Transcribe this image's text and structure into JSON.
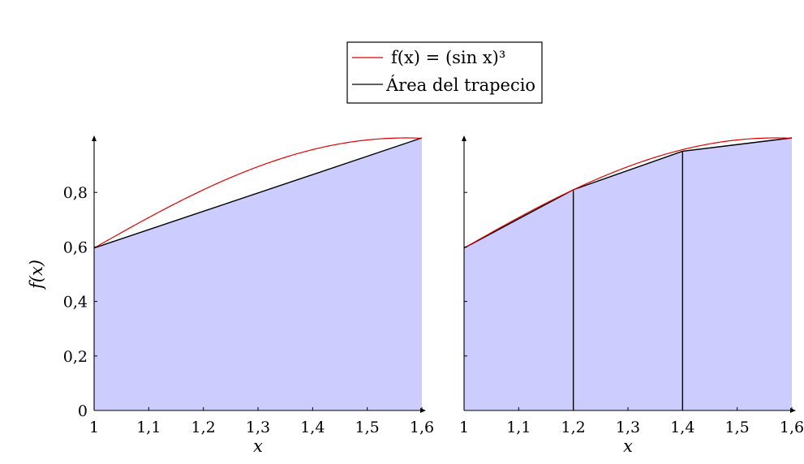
{
  "legend": {
    "entries": [
      {
        "label": "f(x) = (sin x)³",
        "color": "#e00000"
      },
      {
        "label": "Área del trapecio",
        "color": "#000000"
      }
    ]
  },
  "chart_data": [
    {
      "type": "area",
      "title": "",
      "xlabel": "x",
      "ylabel": "f(x)",
      "xlim": [
        1,
        1.6
      ],
      "ylim": [
        0,
        1
      ],
      "x_ticks": [
        1,
        1.1,
        1.2,
        1.3,
        1.4,
        1.5,
        1.6
      ],
      "x_tick_labels": [
        "1",
        "1,1",
        "1,2",
        "1,3",
        "1,4",
        "1,5",
        "1,6"
      ],
      "y_ticks": [
        0,
        0.2,
        0.4,
        0.6,
        0.8
      ],
      "y_tick_labels": [
        "0",
        "0,2",
        "0,4",
        "0,6",
        "0,8"
      ],
      "function": {
        "name": "f(x) = (sin x)³",
        "x": [
          1.0,
          1.05,
          1.1,
          1.15,
          1.2,
          1.25,
          1.3,
          1.35,
          1.4,
          1.45,
          1.5,
          1.55,
          1.6
        ],
        "y": [
          0.596,
          0.656,
          0.71,
          0.759,
          0.81,
          0.852,
          0.889,
          0.922,
          0.951,
          0.972,
          0.988,
          0.998,
          1.0
        ]
      },
      "trapezoid": {
        "name": "Área del trapecio",
        "x": [
          1.0,
          1.6
        ],
        "y": [
          0.596,
          1.0
        ]
      },
      "grid": false,
      "legend_position": "top-center"
    },
    {
      "type": "area",
      "title": "",
      "xlabel": "x",
      "ylabel": "",
      "xlim": [
        1,
        1.6
      ],
      "ylim": [
        0,
        1
      ],
      "x_ticks": [
        1,
        1.1,
        1.2,
        1.3,
        1.4,
        1.5,
        1.6
      ],
      "x_tick_labels": [
        "1",
        "1,1",
        "1,2",
        "1,3",
        "1,4",
        "1,5",
        "1,6"
      ],
      "y_ticks": [
        0,
        0.2,
        0.4,
        0.6,
        0.8
      ],
      "y_tick_labels": [],
      "function": {
        "name": "f(x) = (sin x)³",
        "x": [
          1.0,
          1.05,
          1.1,
          1.15,
          1.2,
          1.25,
          1.3,
          1.35,
          1.4,
          1.45,
          1.5,
          1.55,
          1.6
        ],
        "y": [
          0.596,
          0.656,
          0.71,
          0.759,
          0.81,
          0.852,
          0.889,
          0.922,
          0.951,
          0.972,
          0.988,
          0.998,
          1.0
        ]
      },
      "trapezoid": {
        "name": "Área del trapecio",
        "x": [
          1.0,
          1.2,
          1.4,
          1.6
        ],
        "y": [
          0.596,
          0.81,
          0.951,
          1.0
        ]
      },
      "grid": false
    }
  ]
}
